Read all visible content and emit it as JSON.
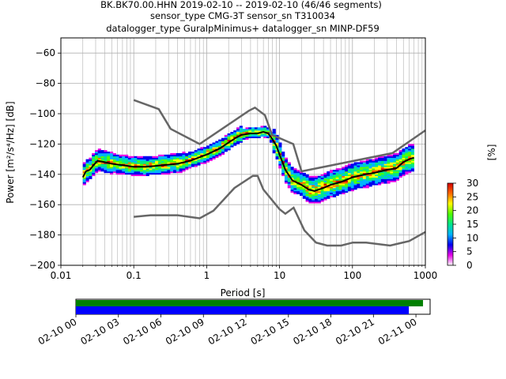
{
  "header": {
    "line1": "BK.BK70.00.HHN   2019-02-10 -- 2019-02-10  (46/46 segments)",
    "line2": "sensor_type CMG-3T sensor_sn T310034",
    "line3": "datalogger_type GuralpMinimus+ datalogger_sn MINP-DF59"
  },
  "chart_data": [
    {
      "type": "heatmap",
      "title": "",
      "xlabel": "Period [s]",
      "ylabel": "Power [m²/s⁴/Hz] [dB]",
      "xscale": "log",
      "xlim": [
        0.01,
        1000
      ],
      "ylim": [
        -200,
        -50
      ],
      "xticks": [
        {
          "value": 0.01,
          "label": "0.01"
        },
        {
          "value": 0.1,
          "label": "0.1"
        },
        {
          "value": 1,
          "label": "1"
        },
        {
          "value": 10,
          "label": "10"
        },
        {
          "value": 100,
          "label": "100"
        },
        {
          "value": 1000,
          "label": "1000"
        }
      ],
      "yticks": [
        -60,
        -80,
        -100,
        -120,
        -140,
        -160,
        -180,
        -200
      ],
      "grid": true,
      "noise_models": {
        "color": "#666666",
        "high": [
          [
            0.1,
            -91
          ],
          [
            0.22,
            -97
          ],
          [
            0.32,
            -110
          ],
          [
            0.8,
            -120
          ],
          [
            3.8,
            -98
          ],
          [
            4.6,
            -96
          ],
          [
            6.3,
            -101
          ],
          [
            7.9,
            -114
          ],
          [
            15.4,
            -120
          ],
          [
            20,
            -138
          ],
          [
            354,
            -126
          ],
          [
            1000,
            -111
          ]
        ],
        "low": [
          [
            0.1,
            -168
          ],
          [
            0.17,
            -167
          ],
          [
            0.4,
            -167
          ],
          [
            0.8,
            -169
          ],
          [
            1.24,
            -164
          ],
          [
            2.4,
            -149
          ],
          [
            4.3,
            -141
          ],
          [
            5,
            -141
          ],
          [
            6,
            -150
          ],
          [
            10,
            -163
          ],
          [
            12,
            -166
          ],
          [
            15.6,
            -162
          ],
          [
            21.9,
            -177
          ],
          [
            31.6,
            -185
          ],
          [
            45,
            -187
          ],
          [
            70,
            -187
          ],
          [
            101,
            -185
          ],
          [
            154,
            -185
          ],
          [
            328,
            -187
          ],
          [
            600,
            -184
          ],
          [
            1000,
            -178
          ]
        ]
      },
      "mean_curve": {
        "color": "#000000",
        "points": [
          [
            0.02,
            -142
          ],
          [
            0.022,
            -138
          ],
          [
            0.025,
            -137
          ],
          [
            0.028,
            -134
          ],
          [
            0.032,
            -131
          ],
          [
            0.04,
            -132
          ],
          [
            0.05,
            -133
          ],
          [
            0.07,
            -134
          ],
          [
            0.1,
            -135
          ],
          [
            0.15,
            -135
          ],
          [
            0.25,
            -134
          ],
          [
            0.4,
            -133
          ],
          [
            0.6,
            -131
          ],
          [
            1,
            -127
          ],
          [
            1.5,
            -123
          ],
          [
            2,
            -119
          ],
          [
            2.5,
            -116
          ],
          [
            3,
            -114
          ],
          [
            4,
            -113
          ],
          [
            5,
            -113
          ],
          [
            6,
            -112
          ],
          [
            7,
            -113
          ],
          [
            8,
            -117
          ],
          [
            9,
            -121
          ],
          [
            10,
            -127
          ],
          [
            12,
            -137
          ],
          [
            15,
            -144
          ],
          [
            20,
            -147
          ],
          [
            25,
            -150
          ],
          [
            30,
            -151
          ],
          [
            40,
            -149
          ],
          [
            50,
            -147
          ],
          [
            70,
            -145
          ],
          [
            100,
            -142
          ],
          [
            150,
            -140
          ],
          [
            200,
            -139
          ],
          [
            300,
            -137
          ],
          [
            400,
            -136
          ],
          [
            500,
            -132
          ],
          [
            600,
            -130
          ],
          [
            700,
            -129
          ]
        ]
      },
      "colorbar": {
        "label": "[%]",
        "range": [
          0,
          30
        ],
        "ticks": [
          0,
          5,
          10,
          15,
          20,
          25,
          30
        ],
        "colormap": [
          "#ffffff",
          "#e600e6",
          "#0000f0",
          "#00b4ff",
          "#00e68c",
          "#50ff00",
          "#ffff00",
          "#ff6a00",
          "#d40000"
        ]
      }
    },
    {
      "type": "timeline",
      "title": "",
      "xlabel": "",
      "xlim": [
        "2019-02-10T00:00",
        "2019-02-11T01:00"
      ],
      "xticks": [
        "02-10 00",
        "02-10 03",
        "02-10 06",
        "02-10 09",
        "02-10 12",
        "02-10 15",
        "02-10 18",
        "02-10 21",
        "02-11 00"
      ],
      "series": [
        {
          "color": "#008000",
          "start": "2019-02-10T00:00",
          "end": "2019-02-11T00:30"
        },
        {
          "color": "#0000ff",
          "start": "2019-02-10T00:00",
          "end": "2019-02-10T23:30"
        }
      ]
    }
  ]
}
